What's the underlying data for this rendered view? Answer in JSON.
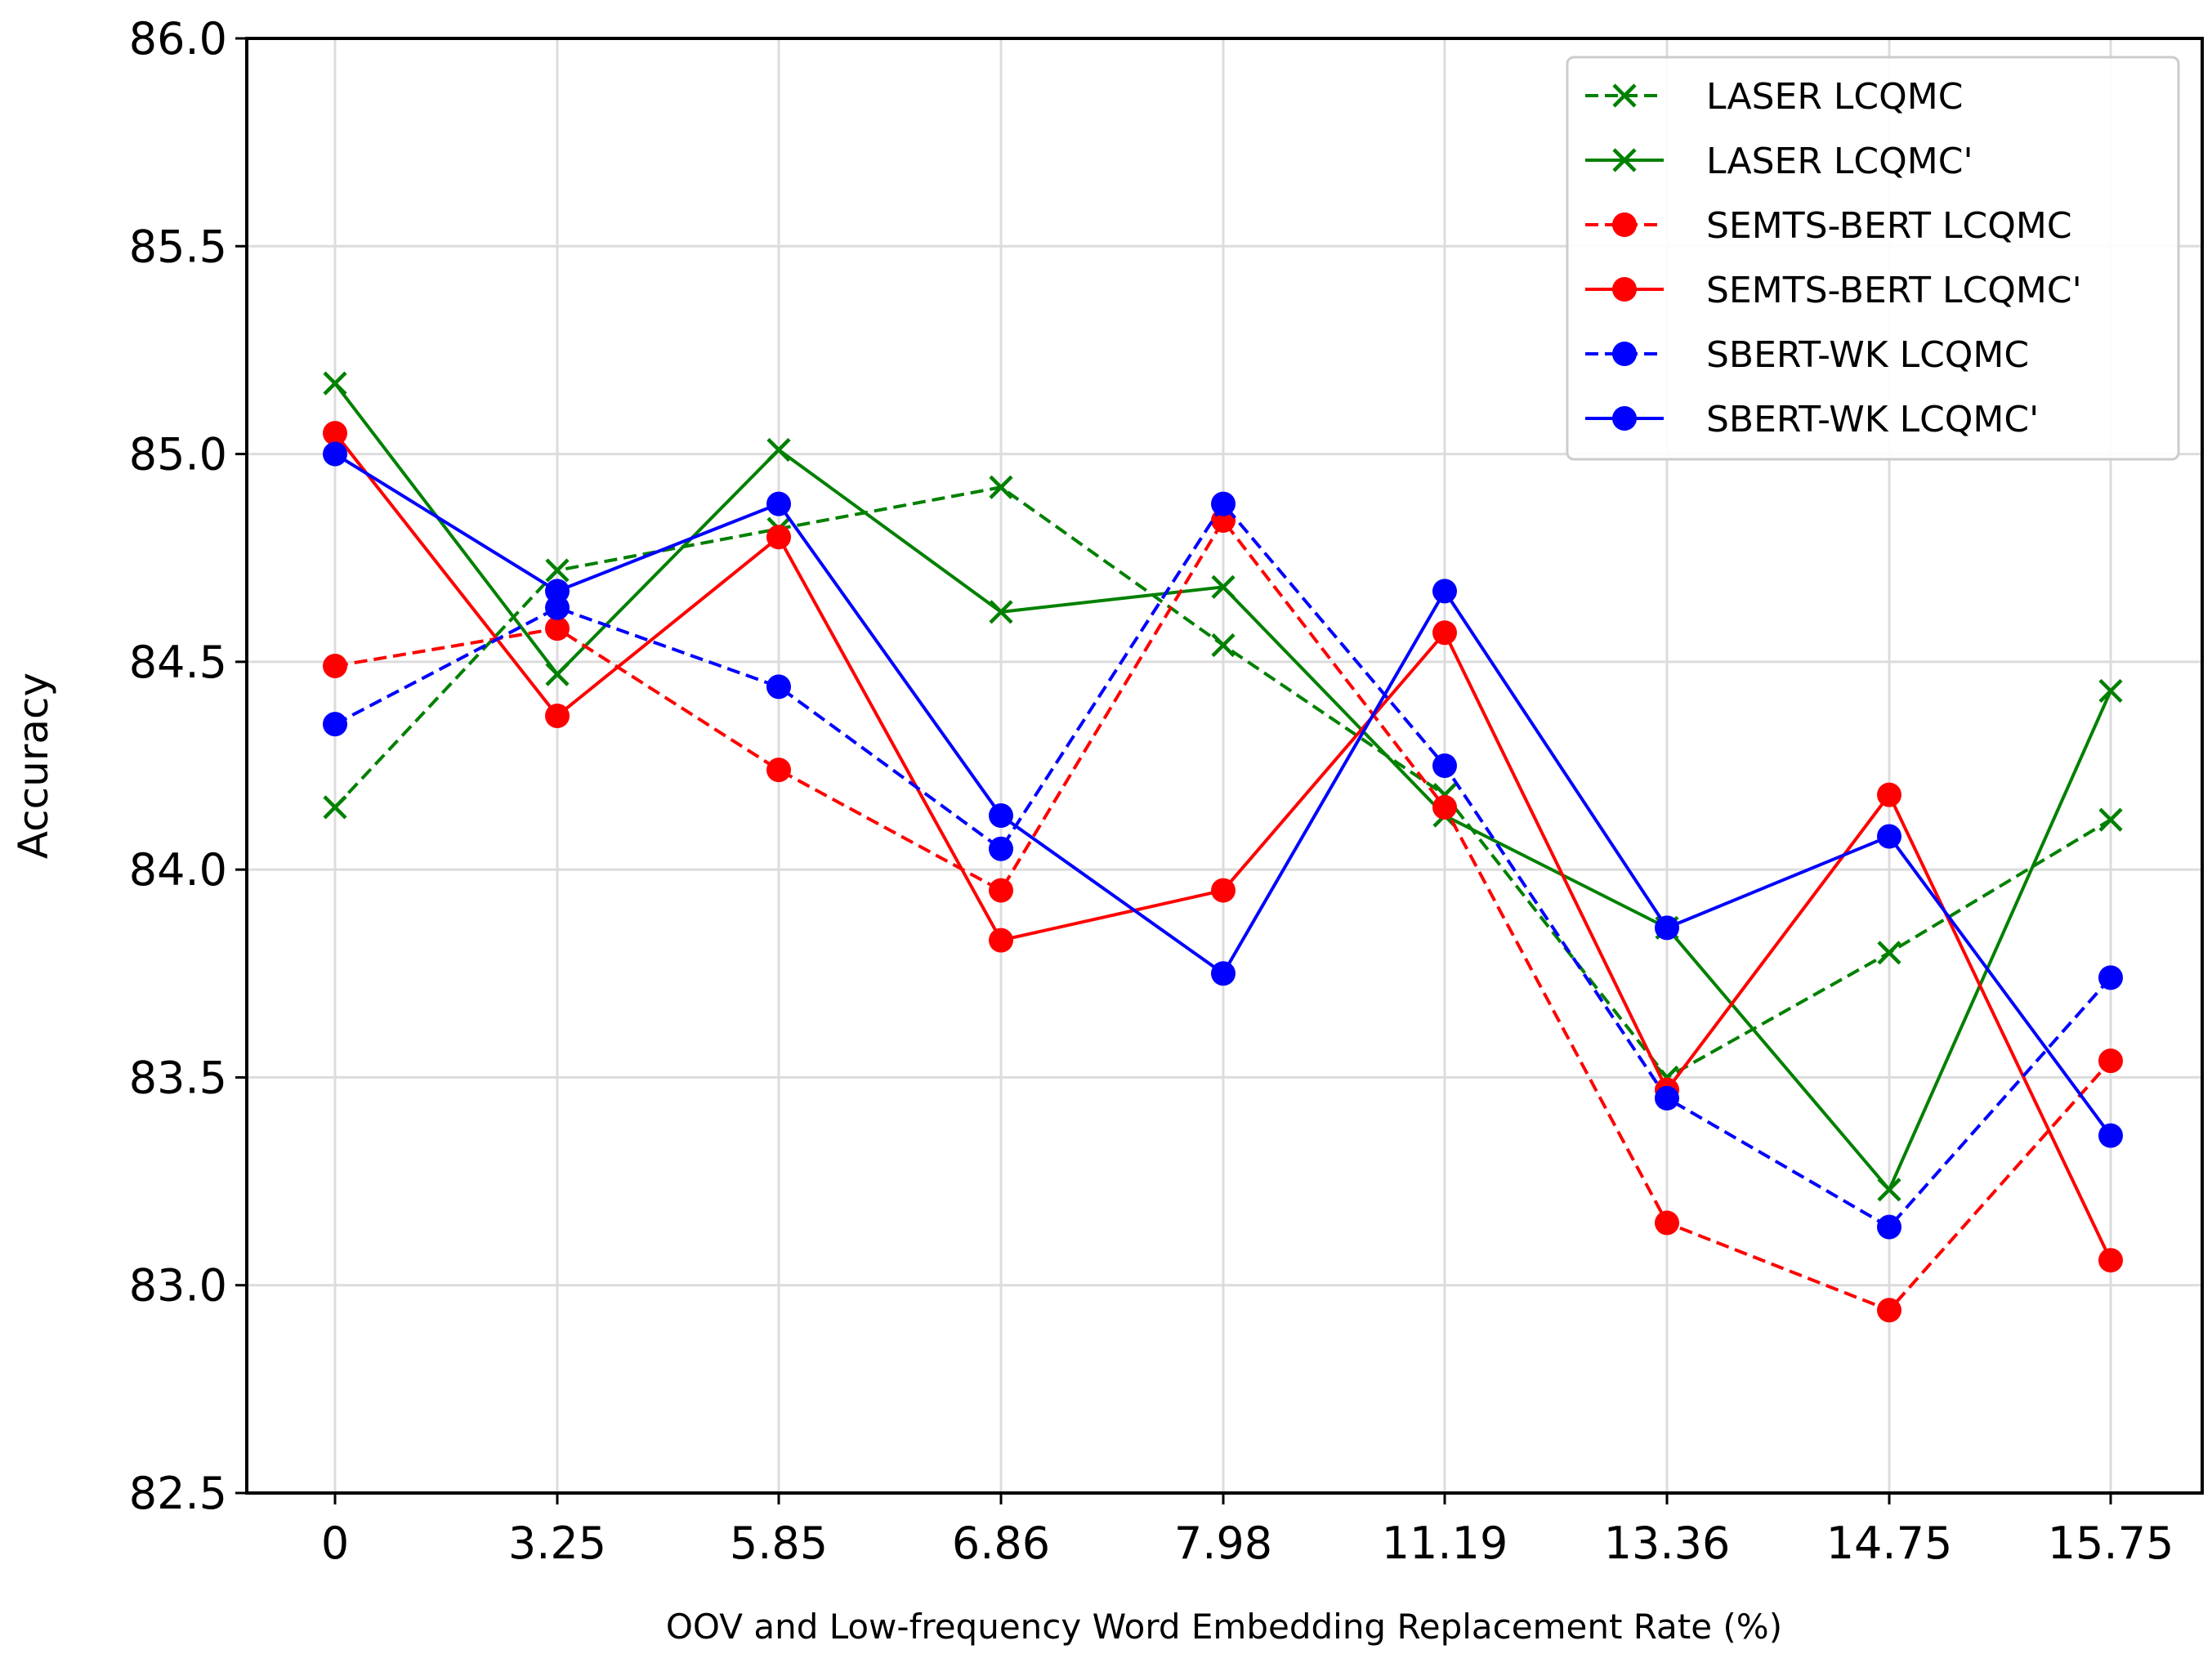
{
  "chart_data": {
    "type": "line",
    "title": "",
    "xlabel": "OOV and Low-frequency Word Embedding Replacement Rate (%)",
    "ylabel": "Accuracy",
    "categories": [
      "0",
      "3.25",
      "5.85",
      "6.86",
      "7.98",
      "11.19",
      "13.36",
      "14.75",
      "15.75"
    ],
    "ylim": [
      82.5,
      86.0
    ],
    "yticks": [
      "82.5",
      "83.0",
      "83.5",
      "84.0",
      "84.5",
      "85.0",
      "85.5",
      "86.0"
    ],
    "grid": true,
    "legend_position": "top-right",
    "series": [
      {
        "name": "LASER LCQMC",
        "color": "#008000",
        "linestyle": "dashed",
        "marker": "x",
        "values": [
          84.15,
          84.72,
          84.82,
          84.92,
          84.54,
          84.18,
          83.5,
          83.8,
          84.12
        ]
      },
      {
        "name": "LASER LCQMC'",
        "color": "#008000",
        "linestyle": "solid",
        "marker": "x",
        "values": [
          85.17,
          84.47,
          85.01,
          84.62,
          84.68,
          84.13,
          83.86,
          83.23,
          84.43
        ]
      },
      {
        "name": "SEMTS-BERT LCQMC",
        "color": "#ff0000",
        "linestyle": "dashed",
        "marker": "circle",
        "values": [
          84.49,
          84.58,
          84.24,
          83.95,
          84.84,
          84.15,
          83.15,
          82.94,
          83.54
        ]
      },
      {
        "name": "SEMTS-BERT LCQMC'",
        "color": "#ff0000",
        "linestyle": "solid",
        "marker": "circle",
        "values": [
          85.05,
          84.37,
          84.8,
          83.83,
          83.95,
          84.57,
          83.47,
          84.18,
          83.06
        ]
      },
      {
        "name": "SBERT-WK LCQMC",
        "color": "#0000ff",
        "linestyle": "dashed",
        "marker": "circle",
        "values": [
          84.35,
          84.63,
          84.44,
          84.05,
          84.88,
          84.25,
          83.45,
          83.14,
          83.74
        ]
      },
      {
        "name": "SBERT-WK LCQMC'",
        "color": "#0000ff",
        "linestyle": "solid",
        "marker": "circle",
        "values": [
          85.0,
          84.67,
          84.88,
          84.13,
          83.75,
          84.67,
          83.86,
          84.08,
          83.36
        ]
      }
    ]
  }
}
